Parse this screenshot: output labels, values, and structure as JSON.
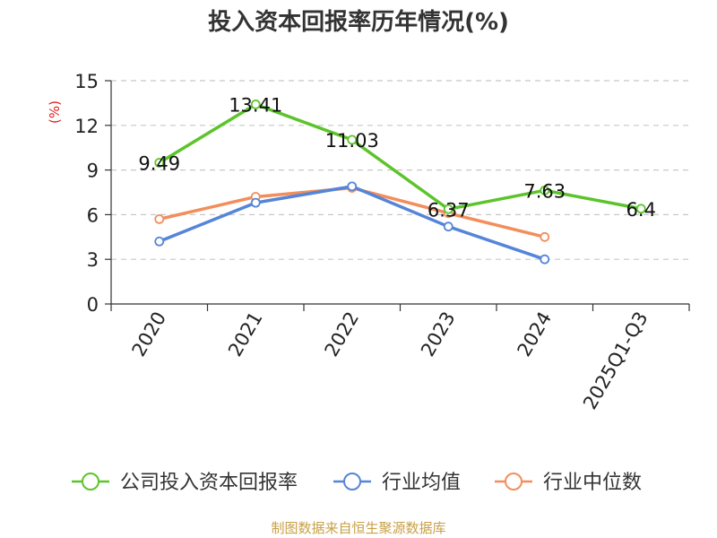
{
  "chart_data": {
    "type": "line",
    "title": "投入资本回报率历年情况(%)",
    "ylabel": "(%)",
    "xlabel": "",
    "categories": [
      "2020",
      "2021",
      "2022",
      "2023",
      "2024",
      "2025Q1-Q3"
    ],
    "ylim": [
      0,
      15
    ],
    "yticks": [
      0,
      3,
      6,
      9,
      12,
      15
    ],
    "grid": true,
    "legend_position": "bottom",
    "series": [
      {
        "name": "公司投入资本回报率",
        "color": "#5cc42b",
        "values": [
          9.49,
          13.41,
          11.03,
          6.37,
          7.63,
          6.4
        ],
        "labels": [
          "9.49",
          "13.41",
          "11.03",
          "6.37",
          "7.63",
          "6.4"
        ]
      },
      {
        "name": "行业均值",
        "color": "#5585d8",
        "values": [
          4.2,
          6.8,
          7.9,
          5.2,
          3.0,
          null
        ]
      },
      {
        "name": "行业中位数",
        "color": "#f28e5c",
        "values": [
          5.7,
          7.2,
          7.8,
          6.1,
          4.5,
          null
        ]
      }
    ]
  },
  "source": {
    "text": "制图数据来自恒生聚源数据库",
    "color": "#c8a046"
  }
}
